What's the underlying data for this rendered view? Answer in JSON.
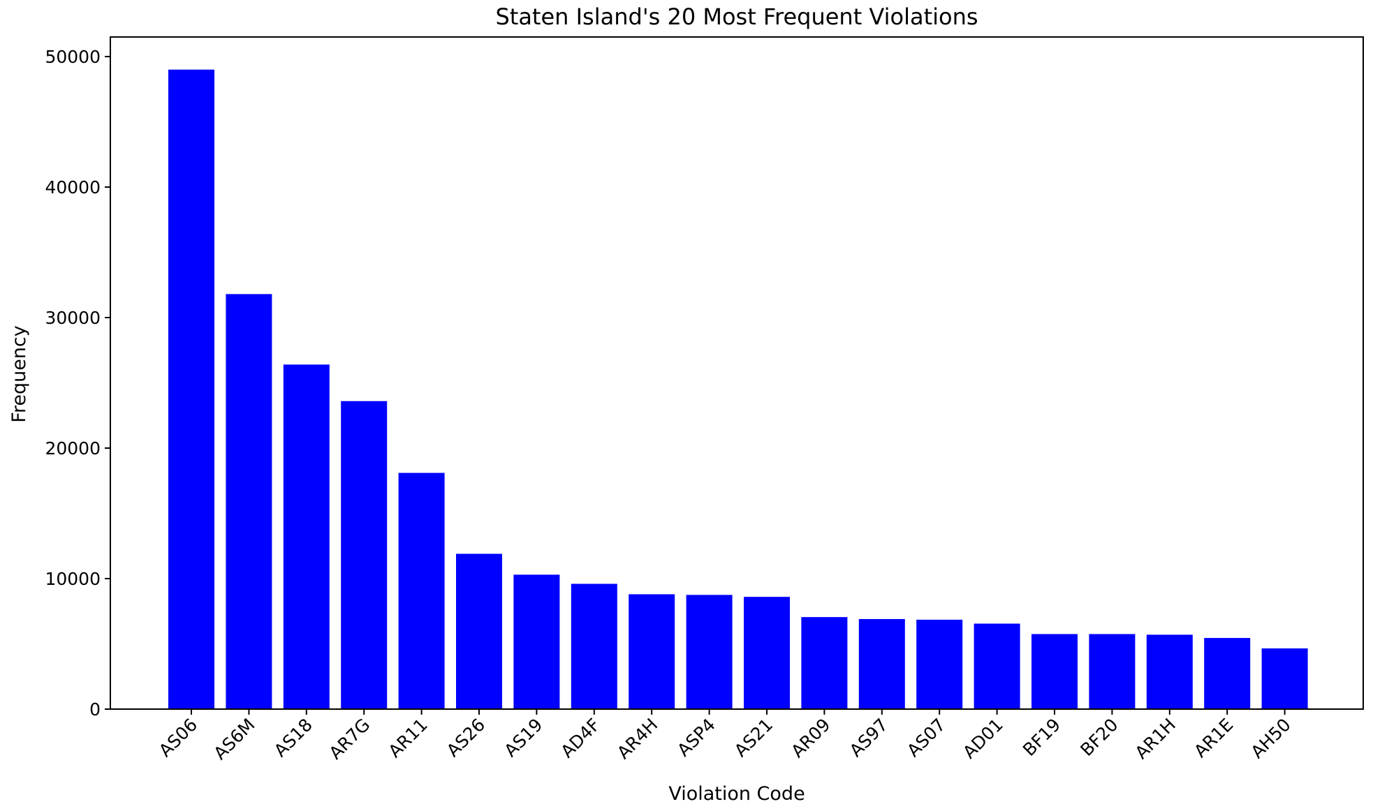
{
  "chart_data": {
    "type": "bar",
    "title": "Staten Island's 20 Most Frequent Violations",
    "xlabel": "Violation Code",
    "ylabel": "Frequency",
    "categories": [
      "AS06",
      "AS6M",
      "AS18",
      "AR7G",
      "AR11",
      "AS26",
      "AS19",
      "AD4F",
      "AR4H",
      "ASP4",
      "AS21",
      "AR09",
      "AS97",
      "AS07",
      "AD01",
      "BF19",
      "BF20",
      "AR1H",
      "AR1E",
      "AH50"
    ],
    "values": [
      49000,
      31800,
      26400,
      23600,
      18100,
      11900,
      10300,
      9600,
      8800,
      8750,
      8600,
      7050,
      6900,
      6850,
      6550,
      5750,
      5750,
      5700,
      5450,
      4650
    ],
    "ylim": [
      0,
      51500
    ],
    "yticks": [
      0,
      10000,
      20000,
      30000,
      40000,
      50000
    ],
    "bar_color": "#0000ff",
    "grid": false,
    "legend": "none"
  }
}
